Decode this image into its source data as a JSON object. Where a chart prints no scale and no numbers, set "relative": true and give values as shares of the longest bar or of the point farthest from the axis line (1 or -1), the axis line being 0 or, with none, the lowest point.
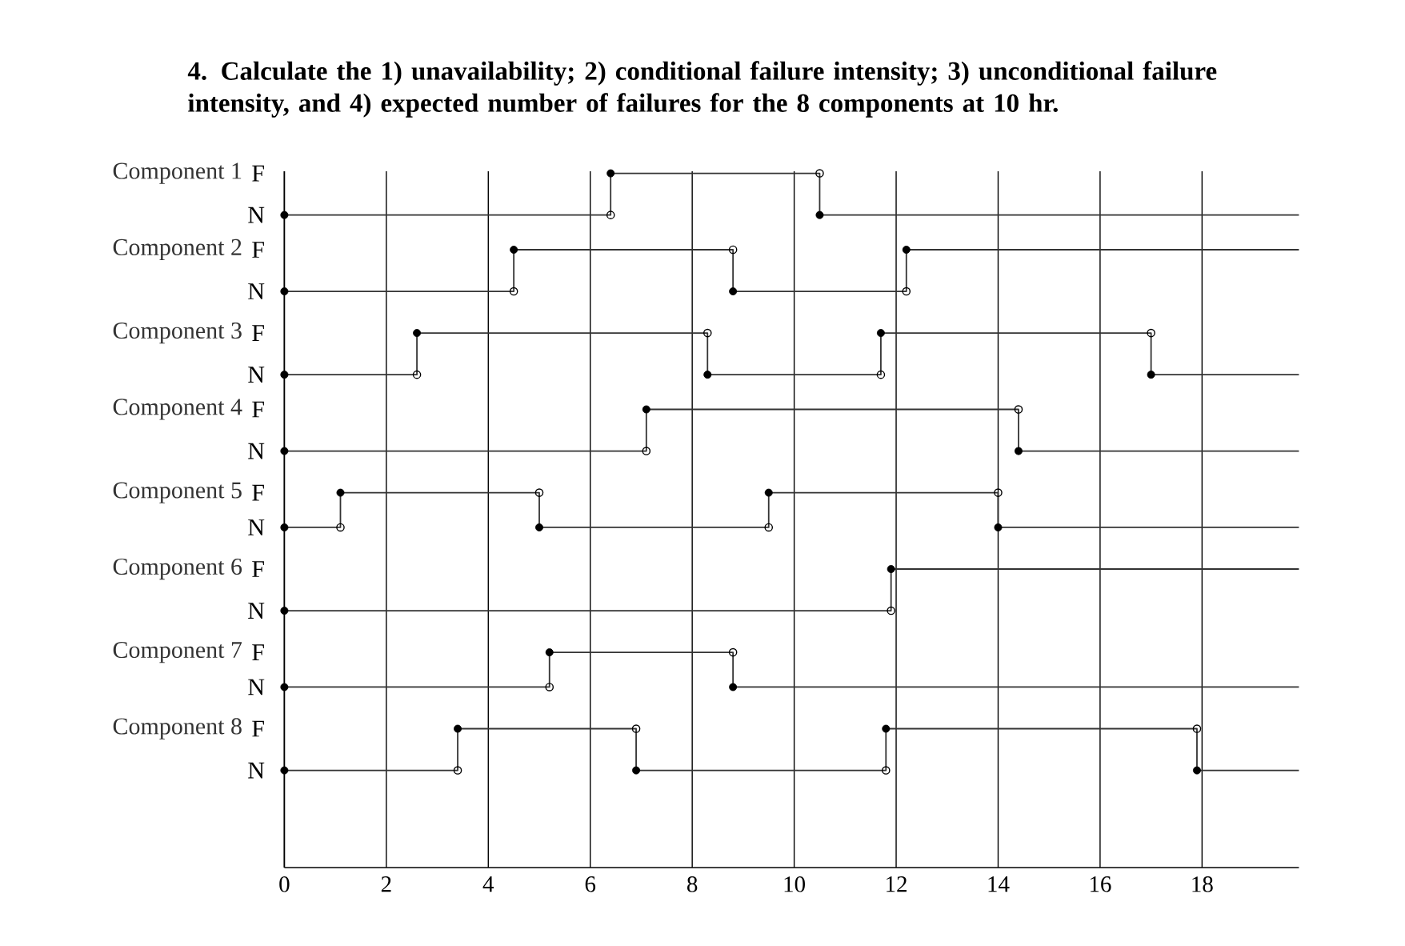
{
  "chart_data": {
    "type": "line",
    "title": "4. Calculate the 1) unavailability; 2) conditional failure intensity; 3) unconditional failure intensity, and 4) expected number of failures for the 8 components at 10 hr.",
    "xlim": [
      0,
      19.9
    ],
    "xticks": [
      0,
      2,
      4,
      6,
      8,
      10,
      12,
      14,
      16,
      18
    ],
    "relative": true,
    "grid": "x",
    "marker": "circle",
    "series": [
      {
        "name": "Component 1",
        "color": "#333333",
        "x": [
          0,
          6.4,
          6.4,
          10.5,
          10.5,
          19.9
        ],
        "values": [
          0.94,
          0.94,
          1,
          1,
          0.94,
          0.94
        ]
      },
      {
        "name": "Component 2",
        "color": "#333333",
        "x": [
          0,
          4.5,
          4.5,
          8.8,
          8.8,
          12.2,
          12.2,
          19.9
        ],
        "values": [
          0.83,
          0.83,
          0.89,
          0.89,
          0.83,
          0.83,
          0.89,
          0.89
        ]
      },
      {
        "name": "Component 3",
        "color": "#333333",
        "x": [
          0,
          2.6,
          2.6,
          8.3,
          8.3,
          11.7,
          11.7,
          17.0,
          17.0,
          19.9
        ],
        "values": [
          0.71,
          0.71,
          0.77,
          0.77,
          0.71,
          0.71,
          0.77,
          0.77,
          0.71,
          0.71
        ]
      },
      {
        "name": "Component 4",
        "color": "#333333",
        "x": [
          0,
          7.1,
          7.1,
          14.4,
          14.4,
          19.9
        ],
        "values": [
          0.6,
          0.6,
          0.66,
          0.66,
          0.6,
          0.6
        ]
      },
      {
        "name": "Component 5",
        "color": "#333333",
        "x": [
          0,
          1.1,
          1.1,
          5.0,
          5.0,
          9.5,
          9.5,
          14.0,
          14.0,
          19.9
        ],
        "values": [
          0.49,
          0.49,
          0.54,
          0.54,
          0.49,
          0.49,
          0.54,
          0.54,
          0.49,
          0.49
        ]
      },
      {
        "name": "Component 6",
        "color": "#333333",
        "x": [
          0,
          11.9,
          11.9,
          19.9
        ],
        "values": [
          0.37,
          0.37,
          0.43,
          0.43
        ]
      },
      {
        "name": "Component 7",
        "color": "#333333",
        "x": [
          0,
          5.2,
          5.2,
          8.8,
          8.8,
          19.9
        ],
        "values": [
          0.26,
          0.26,
          0.31,
          0.31,
          0.26,
          0.26
        ]
      },
      {
        "name": "Component 8",
        "color": "#333333",
        "x": [
          0,
          3.4,
          3.4,
          6.9,
          6.9,
          11.8,
          11.8,
          17.9,
          17.9,
          19.9
        ],
        "values": [
          0.14,
          0.14,
          0.2,
          0.2,
          0.14,
          0.14,
          0.2,
          0.2,
          0.14,
          0.14
        ]
      }
    ],
    "annotations": [
      "F",
      "N",
      "F",
      "N",
      "F",
      "N",
      "F",
      "N",
      "F",
      "N",
      "F",
      "N",
      "F",
      "N",
      "F",
      "N"
    ]
  }
}
